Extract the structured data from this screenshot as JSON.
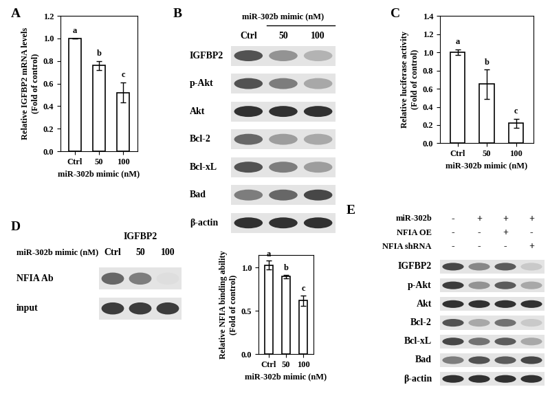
{
  "chart_data": [
    {
      "type": "bar",
      "panel": "A",
      "ylabel": "Relative IGFBP2 mRNA levels (Fold of control)",
      "xlabel": "miR-302b mimic (nM)",
      "categories": [
        "Ctrl",
        "50",
        "100"
      ],
      "values": [
        1.0,
        0.76,
        0.52
      ],
      "errors": [
        0.0,
        0.04,
        0.09
      ],
      "letters": [
        "a",
        "b",
        "c"
      ],
      "color": "#ffffff",
      "ylim": [
        0,
        1.2
      ],
      "yticks": [
        {
          "value": 0,
          "label": "0.0"
        },
        {
          "value": 0.2,
          "label": "0.2"
        },
        {
          "value": 0.4,
          "label": "0.4"
        },
        {
          "value": 0.6,
          "label": "0.6"
        },
        {
          "value": 0.8,
          "label": "0.8"
        },
        {
          "value": 1.0,
          "label": "1.0"
        },
        {
          "value": 1.2,
          "label": "1.2"
        }
      ]
    },
    {
      "type": "bar",
      "panel": "C",
      "ylabel": "Relative luciferase activity (Fold of control)",
      "xlabel": "miR-302b mimic (nM)",
      "categories": [
        "Ctrl",
        "50",
        "100"
      ],
      "values": [
        1.0,
        0.65,
        0.22
      ],
      "errors": [
        0.03,
        0.16,
        0.05
      ],
      "letters": [
        "a",
        "b",
        "c"
      ],
      "color": "#ffffff",
      "ylim": [
        0,
        1.4
      ],
      "yticks": [
        {
          "value": 0,
          "label": "0.0"
        },
        {
          "value": 0.2,
          "label": "0.2"
        },
        {
          "value": 0.4,
          "label": "0.4"
        },
        {
          "value": 0.6,
          "label": "0.6"
        },
        {
          "value": 0.8,
          "label": "0.8"
        },
        {
          "value": 1.0,
          "label": "1.0"
        },
        {
          "value": 1.2,
          "label": "1.2"
        },
        {
          "value": 1.4,
          "label": "1.4"
        }
      ]
    },
    {
      "type": "bar",
      "ylabel": "Relative NFIA binding ability (Fold of control)",
      "xlabel": "miR-302b mimic (nM)",
      "categories": [
        "Ctrl",
        "50",
        "100"
      ],
      "values": [
        1.03,
        0.9,
        0.62
      ],
      "errors": [
        0.05,
        0.02,
        0.06
      ],
      "letters": [
        "a",
        "b",
        "c"
      ],
      "color": "#ffffff",
      "ylim": [
        0,
        1.15
      ],
      "yticks": [
        {
          "value": 0,
          "label": "0.0"
        },
        {
          "value": 0.5,
          "label": "0.5"
        },
        {
          "value": 1.0,
          "label": "1.0"
        }
      ]
    }
  ],
  "blots": [
    {
      "panel": "B",
      "header": "miR-302b mimic (nM)",
      "lanes": [
        "Ctrl",
        "50",
        "100"
      ],
      "rows": [
        {
          "label": "IGFBP2",
          "band_intensity": [
            0.8,
            0.5,
            0.35
          ]
        },
        {
          "label": "p-Akt",
          "band_intensity": [
            0.8,
            0.6,
            0.4
          ]
        },
        {
          "label": "Akt",
          "band_intensity": [
            0.95,
            0.95,
            0.95
          ]
        },
        {
          "label": "Bcl-2",
          "band_intensity": [
            0.7,
            0.45,
            0.4
          ]
        },
        {
          "label": "Bcl-xL",
          "band_intensity": [
            0.8,
            0.6,
            0.45
          ]
        },
        {
          "label": "Bad",
          "band_intensity": [
            0.6,
            0.7,
            0.85
          ]
        },
        {
          "label": "β-actin",
          "band_intensity": [
            0.95,
            0.95,
            0.95
          ]
        }
      ]
    },
    {
      "panel": "D",
      "title": "IGFBP2",
      "header": "miR-302b mimic (nM)",
      "lanes": [
        "Ctrl",
        "50",
        "100"
      ],
      "rows": [
        {
          "label": "NFIA Ab",
          "band_intensity": [
            0.7,
            0.6,
            0.15
          ]
        },
        {
          "label": "input",
          "band_intensity": [
            0.9,
            0.9,
            0.9
          ]
        }
      ]
    },
    {
      "panel": "E",
      "treatments": [
        {
          "label": "miR-302b",
          "marks": [
            "-",
            "+",
            "+",
            "+"
          ]
        },
        {
          "label": "NFIA OE",
          "marks": [
            "-",
            "-",
            "+",
            "-"
          ]
        },
        {
          "label": "NFIA shRNA",
          "marks": [
            "-",
            "-",
            "-",
            "+"
          ]
        }
      ],
      "rows": [
        {
          "label": "IGFBP2",
          "band_intensity": [
            0.85,
            0.55,
            0.75,
            0.25
          ]
        },
        {
          "label": "p-Akt",
          "band_intensity": [
            0.9,
            0.5,
            0.75,
            0.4
          ]
        },
        {
          "label": "Akt",
          "band_intensity": [
            0.95,
            0.95,
            0.95,
            0.95
          ]
        },
        {
          "label": "Bcl-2",
          "band_intensity": [
            0.8,
            0.4,
            0.65,
            0.25
          ]
        },
        {
          "label": "Bcl-xL",
          "band_intensity": [
            0.85,
            0.65,
            0.75,
            0.4
          ]
        },
        {
          "label": "Bad",
          "band_intensity": [
            0.6,
            0.8,
            0.75,
            0.85
          ]
        },
        {
          "label": "β-actin",
          "band_intensity": [
            0.95,
            0.95,
            0.95,
            0.95
          ]
        }
      ]
    }
  ]
}
